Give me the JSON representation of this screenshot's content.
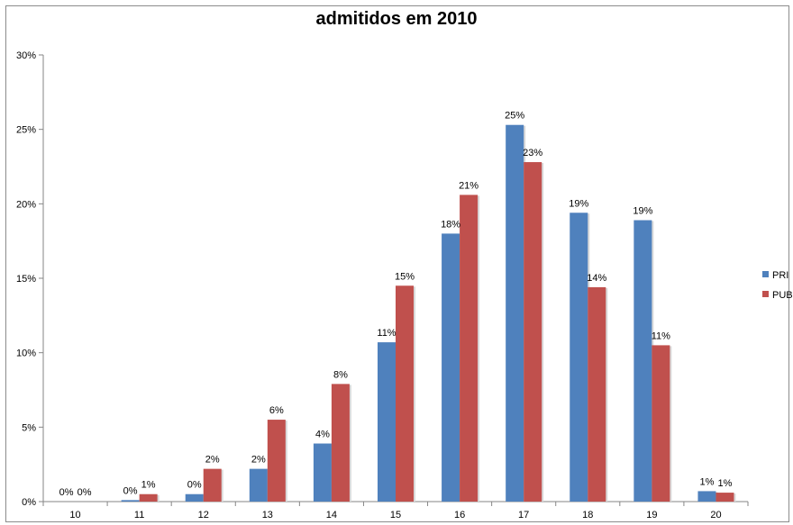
{
  "chart_data": {
    "type": "bar",
    "title": "admitidos em 2010",
    "xlabel": "",
    "ylabel": "",
    "ylim": [
      0,
      30
    ],
    "yticks": [
      "0%",
      "5%",
      "10%",
      "15%",
      "20%",
      "25%",
      "30%"
    ],
    "categories": [
      "10",
      "11",
      "12",
      "13",
      "14",
      "15",
      "16",
      "17",
      "18",
      "19",
      "20"
    ],
    "series": [
      {
        "name": "PRI",
        "color": "#4f81bd",
        "values": [
          0,
          0.1,
          0.5,
          2.2,
          3.9,
          10.7,
          18.0,
          25.3,
          19.4,
          18.9,
          0.7
        ],
        "labels": [
          "0%",
          "0%",
          "0%",
          "2%",
          "4%",
          "11%",
          "18%",
          "25%",
          "19%",
          "19%",
          "1%"
        ]
      },
      {
        "name": "PUB",
        "color": "#c0504d",
        "values": [
          0,
          0.5,
          2.2,
          5.5,
          7.9,
          14.5,
          20.6,
          22.8,
          14.4,
          10.5,
          0.6
        ],
        "labels": [
          "0%",
          "1%",
          "2%",
          "6%",
          "8%",
          "15%",
          "21%",
          "23%",
          "14%",
          "11%",
          "1%"
        ]
      }
    ],
    "grid": false,
    "legend": "right"
  }
}
